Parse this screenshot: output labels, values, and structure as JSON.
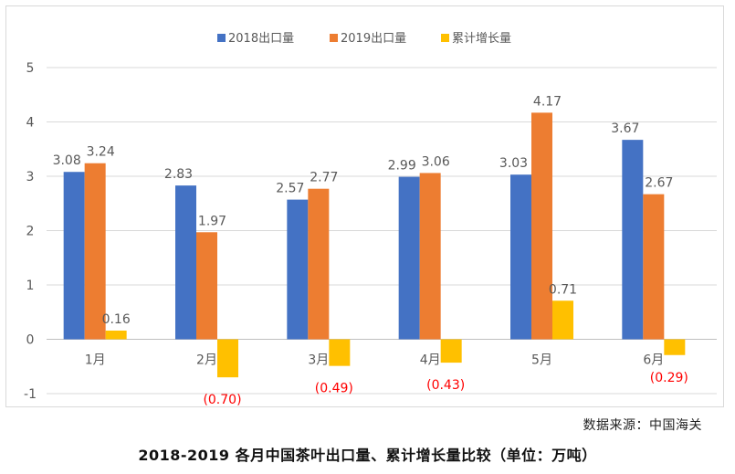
{
  "chart_data": {
    "type": "bar",
    "categories": [
      "1月",
      "2月",
      "3月",
      "4月",
      "5月",
      "6月"
    ],
    "series": [
      {
        "name": "2018出口量",
        "color": "#4472c4",
        "values": [
          3.08,
          2.83,
          2.57,
          2.99,
          3.03,
          3.67
        ],
        "labels": [
          "3.08",
          "2.83",
          "2.57",
          "2.99",
          "3.03",
          "3.67"
        ]
      },
      {
        "name": "2019出口量",
        "color": "#ed7d31",
        "values": [
          3.24,
          1.97,
          2.77,
          3.06,
          4.17,
          2.67
        ],
        "labels": [
          "3.24",
          "1.97",
          "2.77",
          "3.06",
          "4.17",
          "2.67"
        ]
      },
      {
        "name": "累计增长量",
        "color": "#ffc000",
        "values": [
          0.16,
          -0.7,
          -0.49,
          -0.43,
          0.71,
          -0.29
        ],
        "labels": [
          "0.16",
          "(0.70)",
          "(0.49)",
          "(0.43)",
          "0.71",
          "(0.29)"
        ]
      }
    ],
    "yticks": [
      "-1",
      "0",
      "1",
      "2",
      "3",
      "4",
      "5"
    ],
    "ylim": [
      -1,
      5
    ],
    "grid": true,
    "legend": "top-center",
    "negative_label_color": "#ff0000"
  },
  "source": "数据来源：中国海关",
  "caption": "2018-2019 各月中国茶叶出口量、累计增长量比较（单位：万吨）"
}
